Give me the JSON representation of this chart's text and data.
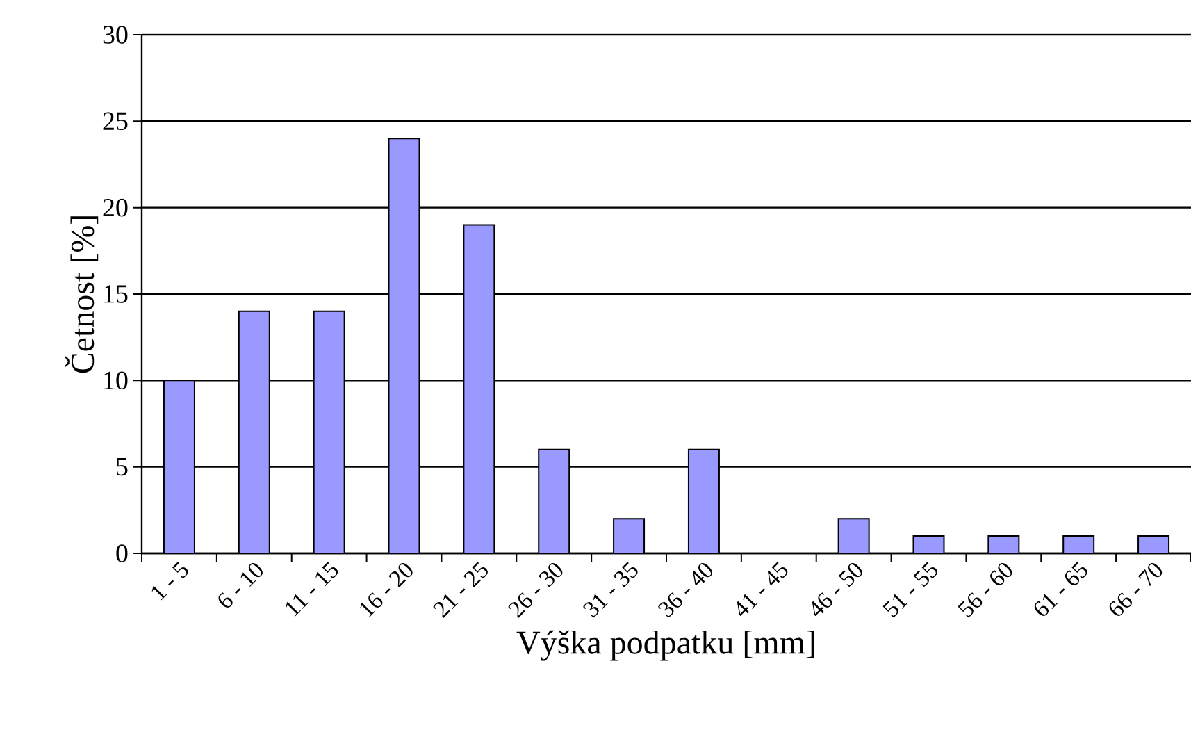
{
  "chart_data": {
    "type": "bar",
    "xlabel": "Výška podpatku [mm]",
    "ylabel": "Četnost [%]",
    "categories": [
      "1 - 5",
      "6 - 10",
      "11 - 15",
      "16 - 20",
      "21 - 25",
      "26 - 30",
      "31 - 35",
      "36 - 40",
      "41 - 45",
      "46 - 50",
      "51 - 55",
      "56 - 60",
      "61 - 65",
      "66 - 70"
    ],
    "values": [
      10,
      14,
      14,
      24,
      19,
      6,
      2,
      6,
      0,
      2,
      1,
      1,
      1,
      1
    ],
    "color": "#9999ff",
    "ylim": [
      0,
      30
    ],
    "yticks": [
      0,
      5,
      10,
      15,
      20,
      25,
      30
    ],
    "grid": "y"
  }
}
